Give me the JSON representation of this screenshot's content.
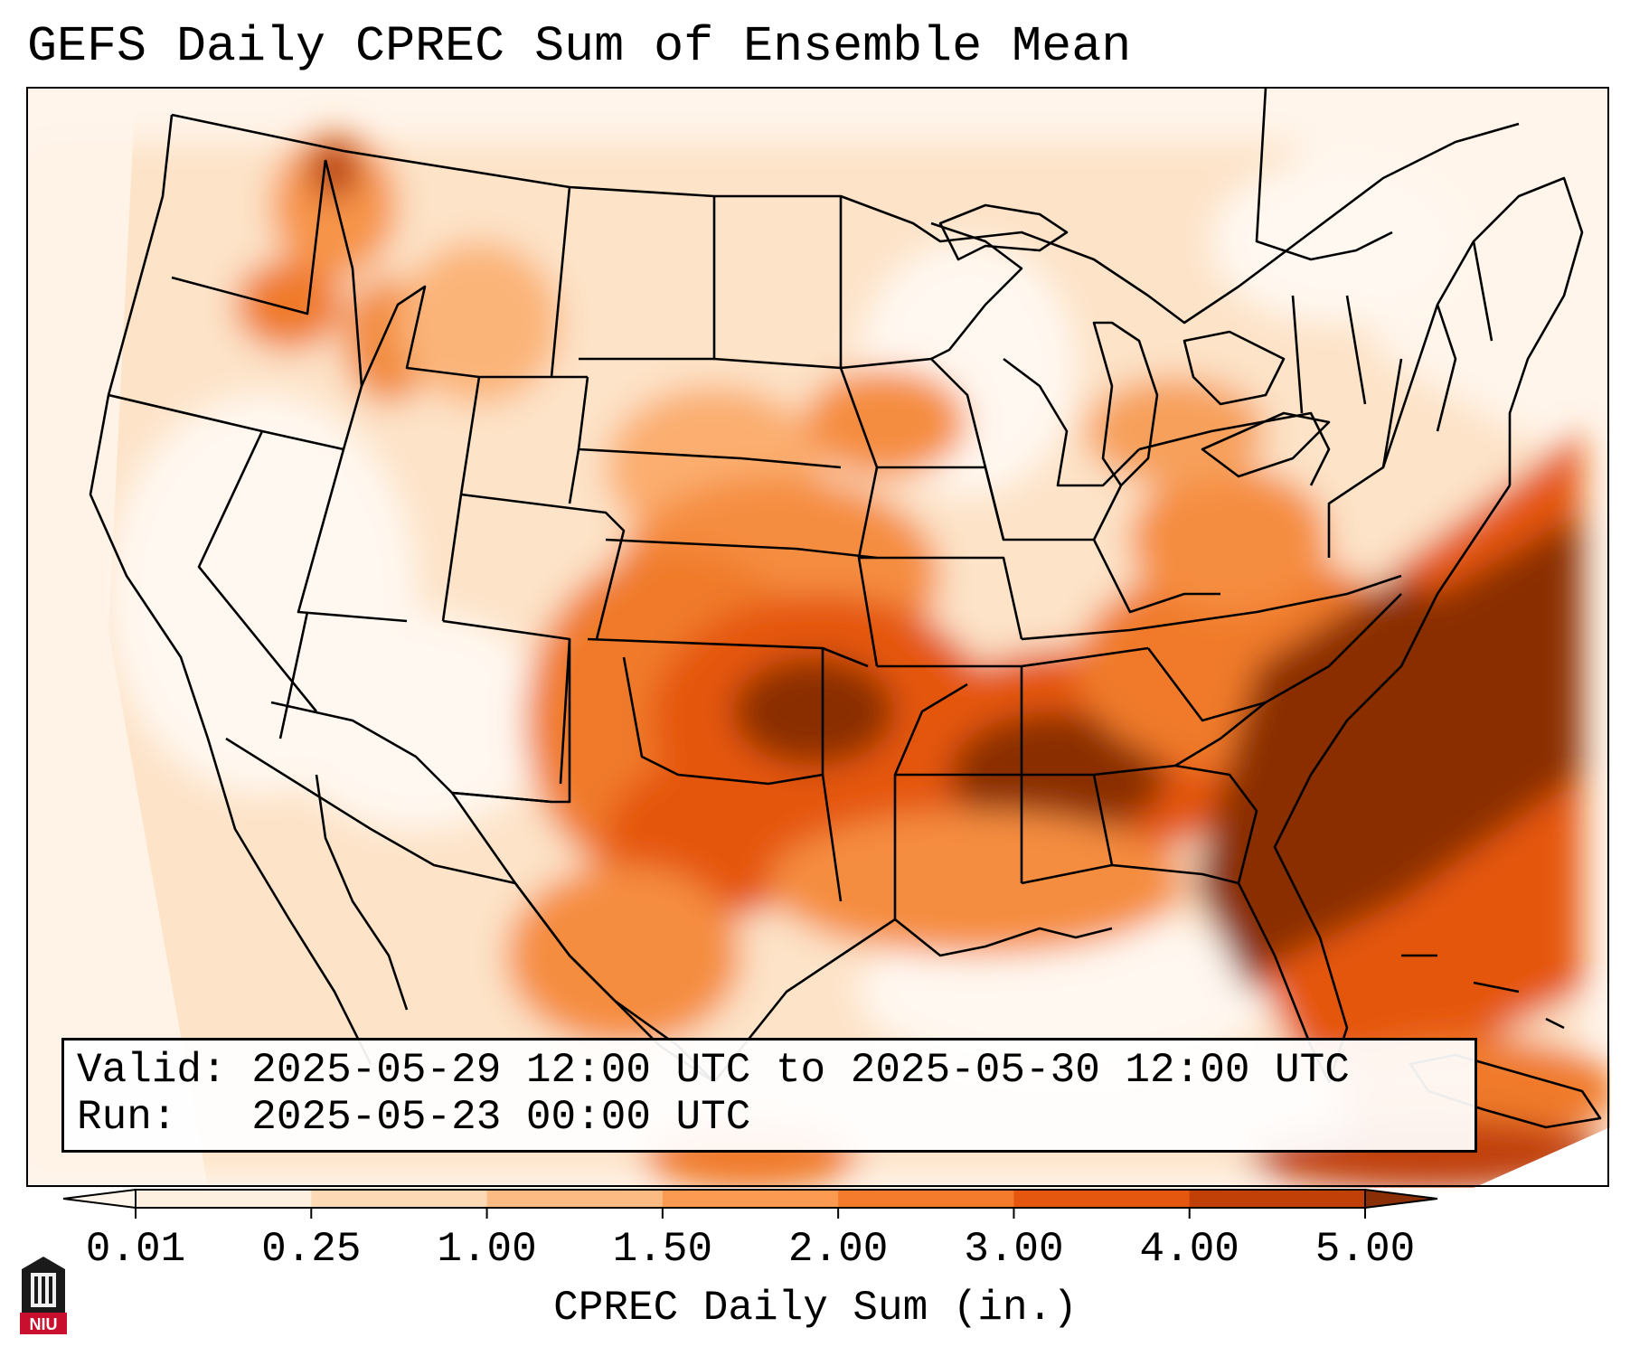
{
  "title": "GEFS Daily CPREC Sum of Ensemble Mean",
  "info": {
    "valid_label": "Valid:",
    "valid_value": "2025-05-29 12:00 UTC to 2025-05-30 12:00 UTC",
    "run_label": "Run:",
    "run_value": "2025-05-23 00:00 UTC"
  },
  "colorbar": {
    "label": "CPREC Daily Sum (in.)",
    "ticks": [
      "0.01",
      "0.25",
      "1.00",
      "1.50",
      "2.00",
      "3.00",
      "4.00",
      "5.00"
    ],
    "colors": [
      "#fef0e0",
      "#fdd9b5",
      "#fdbb84",
      "#fc9a52",
      "#f57b2c",
      "#e5560e",
      "#c04008"
    ],
    "under_color": "#fff5eb",
    "over_color": "#8a2f05",
    "extend": "both"
  },
  "logo": {
    "text": "NIU",
    "background": "#c8102e"
  }
}
